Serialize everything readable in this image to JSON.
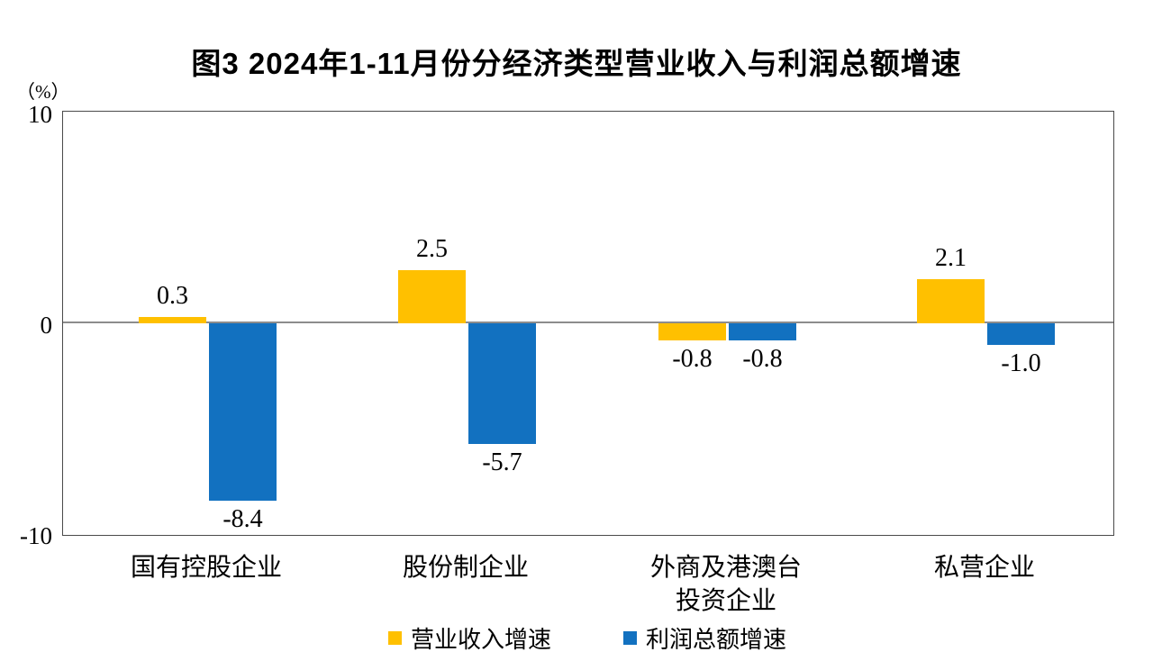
{
  "title": "图3 2024年1-11月份分经济类型营业收入与利润总额增速",
  "unit_label": "（%）",
  "chart_data": {
    "type": "bar",
    "title": "图3 2024年1-11月份分经济类型营业收入与利润总额增速",
    "ylabel": "（%）",
    "xlabel": "",
    "ylim": [
      -10,
      10
    ],
    "yticks": [
      "10",
      "0",
      "-10"
    ],
    "grid": false,
    "legend_position": "bottom",
    "zero_line_color": "#8c8c8c",
    "categories": [
      "国有控股企业",
      "股份制企业",
      "外商及港澳台\n投资企业",
      "私营企业"
    ],
    "series": [
      {
        "name": "营业收入增速",
        "color": "#FFC000",
        "values": [
          0.3,
          2.5,
          -0.8,
          2.1
        ]
      },
      {
        "name": "利润总额增速",
        "color": "#1271C0",
        "values": [
          -8.4,
          -5.7,
          -0.8,
          -1.0
        ]
      }
    ],
    "value_label_format": "one-decimal"
  }
}
